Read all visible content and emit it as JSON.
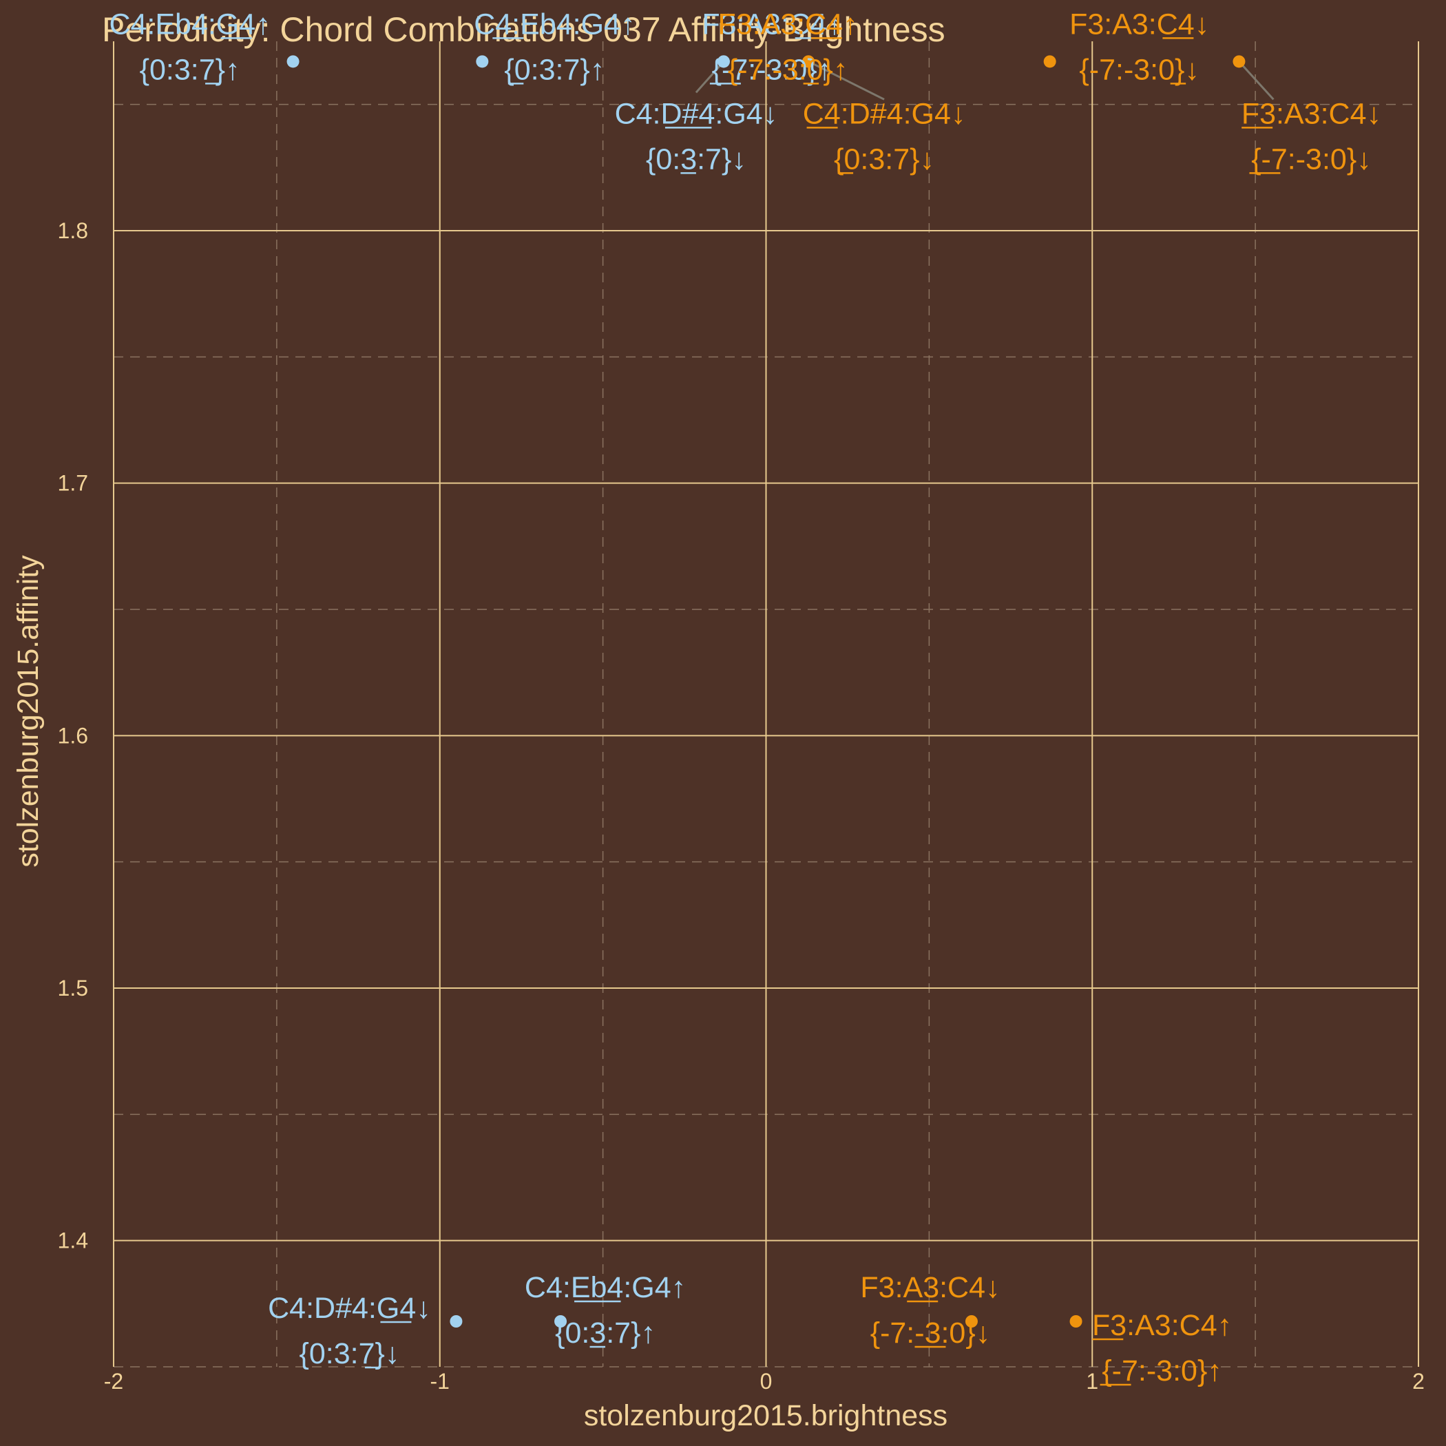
{
  "colors": {
    "background": "#4e3227",
    "text": "#f3d49a",
    "grid_major": "#e7c98e",
    "grid_minor": "#8a7260",
    "series_blue": "#a2d2f0",
    "series_orange": "#f0940e",
    "leader": "#7d776c"
  },
  "chart_data": {
    "type": "scatter",
    "title": "Periodicity: Chord Combinations 037 Affinity-Brightness",
    "xlabel": "stolzenburg2015.brightness",
    "ylabel": "stolzenburg2015.affinity",
    "xlim": [
      -2,
      2
    ],
    "ylim": [
      1.35,
      1.875
    ],
    "x_ticks": [
      -2,
      -1,
      0,
      1,
      2
    ],
    "x_tick_labels": [
      "-2",
      "-1",
      "0",
      "1",
      "2"
    ],
    "y_ticks": [
      1.4,
      1.5,
      1.6,
      1.7,
      1.8
    ],
    "y_tick_labels": [
      "1.4",
      "1.5",
      "1.6",
      "1.7",
      "1.8"
    ],
    "grid": true,
    "legend": "none",
    "points": [
      {
        "x": -1.45,
        "y": 1.867,
        "color": "blue",
        "label1": "C4:Eb4:G4↑",
        "label2": "{0:3:7}↑"
      },
      {
        "x": -0.87,
        "y": 1.867,
        "color": "blue",
        "label1": "C4:Eb4:G4↑",
        "label2": "{0:3:7}↑"
      },
      {
        "x": -0.13,
        "y": 1.867,
        "color": "blue",
        "label1": "F3:A3:C4↑",
        "label2": "{-7:-3:0}↑"
      },
      {
        "x": -0.13,
        "y": 1.867,
        "color": "blue",
        "label1": "C4:D#4:G4↓",
        "label2": "{0:3:7}↓"
      },
      {
        "x": 0.13,
        "y": 1.867,
        "color": "orange",
        "label1": "F3:A3:C4↑",
        "label2": "{-7:-3:0}↑"
      },
      {
        "x": 0.13,
        "y": 1.867,
        "color": "orange",
        "label1": "C4:D#4:G4↓",
        "label2": "{0:3:7}↓"
      },
      {
        "x": 0.87,
        "y": 1.867,
        "color": "orange",
        "label1": "F3:A3:C4↓",
        "label2": "{-7:-3:0}↓"
      },
      {
        "x": 1.45,
        "y": 1.867,
        "color": "orange",
        "label1": "F3:A3:C4↓",
        "label2": "{-7:-3:0}↓"
      },
      {
        "x": -0.95,
        "y": 1.368,
        "color": "blue",
        "label1": "C4:D#4:G4↓",
        "label2": "{0:3:7}↓"
      },
      {
        "x": -0.63,
        "y": 1.368,
        "color": "blue",
        "label1": "C4:Eb4:G4↑",
        "label2": "{0:3:7}↑"
      },
      {
        "x": 0.63,
        "y": 1.368,
        "color": "orange",
        "label1": "F3:A3:C4↓",
        "label2": "{-7:-3:0}↓"
      },
      {
        "x": 0.95,
        "y": 1.368,
        "color": "orange",
        "label1": "F3:A3:C4↑",
        "label2": "{-7:-3:0}↑"
      }
    ]
  }
}
